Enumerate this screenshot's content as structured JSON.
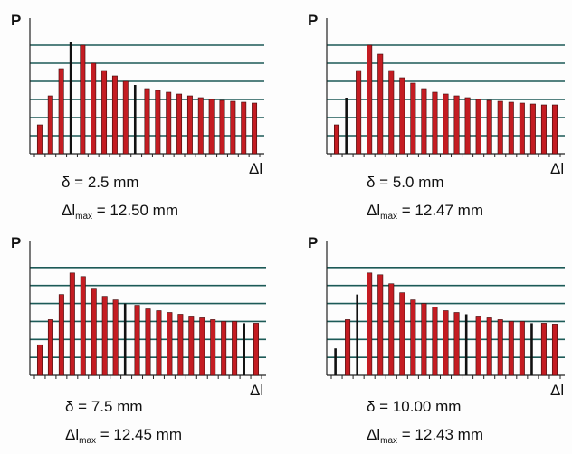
{
  "colors": {
    "grid": "#1c5a57",
    "bar_red": "#c41c22",
    "bar_black": "#111111",
    "text": "#111111"
  },
  "chart_data": [
    {
      "type": "bar",
      "p_label": "P",
      "x_label": "Δl",
      "delta_line": "δ = 2.5 mm",
      "dl_max_prefix": "Δl",
      "dl_max_sub": "max",
      "dl_max_value": " = 12.50 mm",
      "ylim": [
        0,
        7
      ],
      "grid_levels": [
        1,
        2,
        3,
        4,
        5,
        6
      ],
      "values": [
        1.6,
        3.2,
        4.7,
        6.2,
        6.0,
        5.0,
        4.6,
        4.3,
        4.0,
        3.8,
        3.6,
        3.5,
        3.4,
        3.3,
        3.2,
        3.1,
        3.0,
        2.95,
        2.9,
        2.85,
        2.8
      ],
      "bar_colors": [
        "red",
        "red",
        "red",
        "black",
        "red",
        "red",
        "red",
        "red",
        "red",
        "black",
        "red",
        "red",
        "red",
        "red",
        "red",
        "red",
        "red",
        "red",
        "red",
        "red",
        "red"
      ]
    },
    {
      "type": "bar",
      "p_label": "P",
      "x_label": "Δl",
      "delta_line": "δ = 5.0 mm",
      "dl_max_prefix": "Δl",
      "dl_max_sub": "max",
      "dl_max_value": " = 12.47 mm",
      "ylim": [
        0,
        7
      ],
      "grid_levels": [
        1,
        2,
        3,
        4,
        5,
        6
      ],
      "values": [
        1.6,
        3.1,
        4.6,
        6.0,
        5.5,
        4.6,
        4.2,
        3.9,
        3.6,
        3.4,
        3.3,
        3.2,
        3.1,
        3.0,
        2.95,
        2.9,
        2.85,
        2.8,
        2.75,
        2.7,
        2.7
      ],
      "bar_colors": [
        "red",
        "black",
        "red",
        "red",
        "red",
        "red",
        "red",
        "red",
        "red",
        "red",
        "red",
        "red",
        "red",
        "red",
        "red",
        "red",
        "red",
        "red",
        "red",
        "red",
        "red"
      ]
    },
    {
      "type": "bar",
      "p_label": "P",
      "x_label": "Δl",
      "delta_line": "δ = 7.5 mm",
      "dl_max_prefix": "Δl",
      "dl_max_sub": "max",
      "dl_max_value": " = 12.45 mm",
      "ylim": [
        0,
        7
      ],
      "grid_levels": [
        1,
        2,
        3,
        4,
        5,
        6
      ],
      "values": [
        1.7,
        3.1,
        4.5,
        5.7,
        5.5,
        4.8,
        4.4,
        4.2,
        4.0,
        3.9,
        3.7,
        3.6,
        3.5,
        3.4,
        3.3,
        3.2,
        3.1,
        3.0,
        3.0,
        2.9,
        2.9
      ],
      "bar_colors": [
        "red",
        "red",
        "red",
        "red",
        "red",
        "red",
        "red",
        "red",
        "black",
        "red",
        "red",
        "red",
        "red",
        "red",
        "red",
        "red",
        "red",
        "red",
        "red",
        "black",
        "red"
      ]
    },
    {
      "type": "bar",
      "p_label": "P",
      "x_label": "Δl",
      "delta_line": "δ = 10.00 mm",
      "dl_max_prefix": "Δl",
      "dl_max_sub": "max",
      "dl_max_value": " = 12.43 mm",
      "ylim": [
        0,
        7
      ],
      "grid_levels": [
        1,
        2,
        3,
        4,
        5,
        6
      ],
      "values": [
        1.5,
        3.1,
        4.5,
        5.7,
        5.6,
        5.1,
        4.6,
        4.2,
        4.0,
        3.8,
        3.6,
        3.5,
        3.4,
        3.3,
        3.2,
        3.1,
        3.0,
        3.0,
        2.9,
        2.9,
        2.85
      ],
      "bar_colors": [
        "black",
        "red",
        "black",
        "red",
        "red",
        "red",
        "red",
        "red",
        "red",
        "red",
        "red",
        "red",
        "black",
        "red",
        "red",
        "red",
        "red",
        "red",
        "black",
        "red",
        "red"
      ]
    }
  ]
}
